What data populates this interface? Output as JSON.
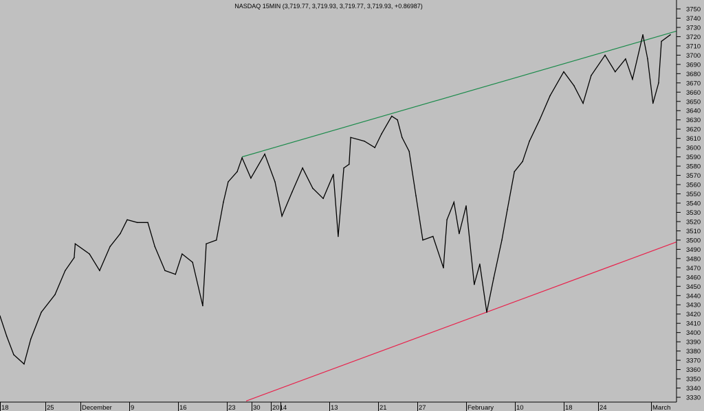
{
  "chart_data": {
    "type": "line",
    "title": "NASDAQ 15MIN (3,719.77, 3,719.93, 3,719.77, 3,719.93, +0.86987)",
    "xlabel": "",
    "ylabel": "",
    "ylim": [
      3330,
      3750
    ],
    "y_ticks": [
      3330,
      3340,
      3350,
      3360,
      3370,
      3380,
      3390,
      3400,
      3410,
      3420,
      3430,
      3440,
      3450,
      3460,
      3470,
      3480,
      3490,
      3500,
      3510,
      3520,
      3530,
      3540,
      3550,
      3560,
      3570,
      3580,
      3590,
      3600,
      3610,
      3620,
      3630,
      3640,
      3650,
      3660,
      3670,
      3680,
      3690,
      3700,
      3710,
      3720,
      3730,
      3740,
      3750
    ],
    "x_ticks": [
      {
        "label": "18",
        "date": "2013-11-18"
      },
      {
        "label": "25",
        "date": "2013-11-25"
      },
      {
        "label": "December",
        "date": "2013-12-02"
      },
      {
        "label": "9",
        "date": "2013-12-09"
      },
      {
        "label": "16",
        "date": "2013-12-16"
      },
      {
        "label": "23",
        "date": "2013-12-23"
      },
      {
        "label": "30",
        "date": "2013-12-30"
      },
      {
        "label": "2014",
        "date": "2014-01-02"
      },
      {
        "label": "",
        "date": "2014-01-06"
      },
      {
        "label": "13",
        "date": "2014-01-13"
      },
      {
        "label": "21",
        "date": "2014-01-21"
      },
      {
        "label": "27",
        "date": "2014-01-27"
      },
      {
        "label": "February",
        "date": "2014-02-03"
      },
      {
        "label": "10",
        "date": "2014-02-10"
      },
      {
        "label": "18",
        "date": "2014-02-18"
      },
      {
        "label": "24",
        "date": "2014-02-24"
      },
      {
        "label": "March",
        "date": "2014-03-03"
      }
    ],
    "grid": false,
    "colors": {
      "background": "#c0c0c0",
      "price": "#000000",
      "upper_trendline": "#1a8a4a",
      "lower_trendline": "#e8204a"
    },
    "series": [
      {
        "points": [
          [
            "2013-11-18T00:00",
            3418
          ],
          [
            "2013-11-19T01:00",
            3396
          ],
          [
            "2013-11-20T03:00",
            3376
          ],
          [
            "2013-11-21T17:00",
            3366
          ],
          [
            "2013-11-22T18:00",
            3393
          ],
          [
            "2013-11-24T09:00",
            3422
          ],
          [
            "2013-11-26T22:00",
            3441
          ],
          [
            "2013-11-28T23:00",
            3467
          ],
          [
            "2013-11-30T18:00",
            3481
          ],
          [
            "2013-11-30T23:00",
            3496
          ],
          [
            "2013-12-03T07:00",
            3485
          ],
          [
            "2013-12-04T18:00",
            3467
          ],
          [
            "2013-12-06T06:00",
            3493
          ],
          [
            "2013-12-07T17:00",
            3507
          ],
          [
            "2013-12-08T17:00",
            3522
          ],
          [
            "2013-12-10T04:00",
            3519
          ],
          [
            "2013-12-11T16:00",
            3519
          ],
          [
            "2013-12-12T16:00",
            3493
          ],
          [
            "2013-12-14T03:00",
            3467
          ],
          [
            "2013-12-15T15:00",
            3463
          ],
          [
            "2013-12-16T14:00",
            3485
          ],
          [
            "2013-12-18T02:00",
            3476
          ],
          [
            "2013-12-19T13:00",
            3429
          ],
          [
            "2013-12-20T01:00",
            3496
          ],
          [
            "2013-12-21T12:00",
            3500
          ],
          [
            "2013-12-22T12:00",
            3541
          ],
          [
            "2013-12-23T09:00",
            3563
          ],
          [
            "2013-12-25T22:00",
            3574
          ],
          [
            "2013-12-27T07:00",
            3589
          ],
          [
            "2013-12-29T19:00",
            3567
          ],
          [
            "2014-01-01T01:00",
            3593
          ],
          [
            "2014-01-03T17:00",
            3563
          ],
          [
            "2014-01-06T05:00",
            3526
          ],
          [
            "2014-01-07T16:00",
            3552
          ],
          [
            "2014-01-09T04:00",
            3578
          ],
          [
            "2014-01-10T15:00",
            3556
          ],
          [
            "2014-01-12T03:00",
            3545
          ],
          [
            "2014-01-13T16:00",
            3571
          ],
          [
            "2014-01-14T11:00",
            3504
          ],
          [
            "2014-01-15T09:00",
            3578
          ],
          [
            "2014-01-16T06:00",
            3582
          ],
          [
            "2014-01-16T12:00",
            3611
          ],
          [
            "2014-01-18T18:00",
            3607
          ],
          [
            "2014-01-20T11:00",
            3600
          ],
          [
            "2014-01-21T13:00",
            3615
          ],
          [
            "2014-01-23T02:00",
            3634
          ],
          [
            "2014-01-23T23:00",
            3630
          ],
          [
            "2014-01-24T16:00",
            3611
          ],
          [
            "2014-01-25T18:00",
            3596
          ],
          [
            "2014-01-26T19:00",
            3548
          ],
          [
            "2014-01-27T19:00",
            3500
          ],
          [
            "2014-01-29T06:00",
            3504
          ],
          [
            "2014-01-30T18:00",
            3470
          ],
          [
            "2014-01-31T06:00",
            3522
          ],
          [
            "2014-02-01T06:00",
            3541
          ],
          [
            "2014-02-02T00:00",
            3507
          ],
          [
            "2014-02-03T00:00",
            3537
          ],
          [
            "2014-02-04T04:00",
            3452
          ],
          [
            "2014-02-04T23:00",
            3474
          ],
          [
            "2014-02-05T23:00",
            3422
          ],
          [
            "2014-02-06T23:00",
            3459
          ],
          [
            "2014-02-08T03:00",
            3500
          ],
          [
            "2014-02-08T22:00",
            3533
          ],
          [
            "2014-02-09T22:00",
            3574
          ],
          [
            "2014-02-11T06:00",
            3585
          ],
          [
            "2014-02-12T09:00",
            3607
          ],
          [
            "2014-02-14T01:00",
            3630
          ],
          [
            "2014-02-15T18:00",
            3656
          ],
          [
            "2014-02-18T00:00",
            3682
          ],
          [
            "2014-02-19T19:00",
            3667
          ],
          [
            "2014-02-21T09:00",
            3648
          ],
          [
            "2014-02-22T19:00",
            3678
          ],
          [
            "2014-02-24T22:00",
            3700
          ],
          [
            "2014-02-26T06:00",
            3682
          ],
          [
            "2014-02-27T15:00",
            3696
          ],
          [
            "2014-02-28T13:00",
            3674
          ],
          [
            "2014-03-01T22:00",
            3722
          ],
          [
            "2014-03-02T13:00",
            3696
          ],
          [
            "2014-03-03T06:00",
            3648
          ],
          [
            "2014-03-04T00:00",
            3670
          ],
          [
            "2014-03-04T09:00",
            3715
          ],
          [
            "2014-03-05T13:00",
            3722
          ]
        ]
      }
    ],
    "trendlines": [
      {
        "kind": "upper",
        "from": [
          "2013-12-27T07:00",
          3590
        ],
        "to": [
          "2014-03-06T09:00",
          3726
        ]
      },
      {
        "kind": "lower",
        "from": [
          "2013-12-28T11:00",
          3326
        ],
        "to": [
          "2014-03-06T09:00",
          3498
        ]
      }
    ]
  }
}
